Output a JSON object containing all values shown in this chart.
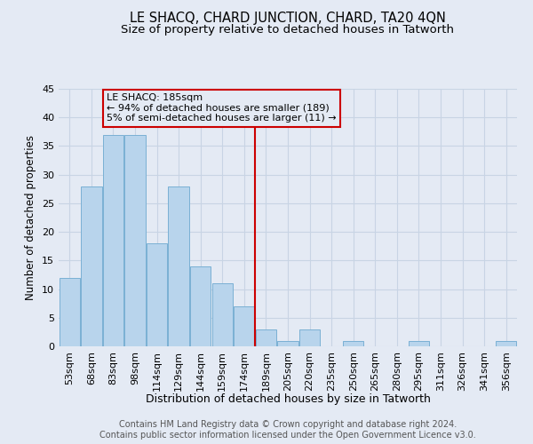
{
  "title": "LE SHACQ, CHARD JUNCTION, CHARD, TA20 4QN",
  "subtitle": "Size of property relative to detached houses in Tatworth",
  "xlabel": "Distribution of detached houses by size in Tatworth",
  "ylabel": "Number of detached properties",
  "footer_line1": "Contains HM Land Registry data © Crown copyright and database right 2024.",
  "footer_line2": "Contains public sector information licensed under the Open Government Licence v3.0.",
  "bin_labels": [
    "53sqm",
    "68sqm",
    "83sqm",
    "98sqm",
    "114sqm",
    "129sqm",
    "144sqm",
    "159sqm",
    "174sqm",
    "189sqm",
    "205sqm",
    "220sqm",
    "235sqm",
    "250sqm",
    "265sqm",
    "280sqm",
    "295sqm",
    "311sqm",
    "326sqm",
    "341sqm",
    "356sqm"
  ],
  "bar_values": [
    12,
    28,
    37,
    37,
    18,
    28,
    14,
    11,
    7,
    3,
    1,
    3,
    0,
    1,
    0,
    0,
    1,
    0,
    0,
    0,
    1
  ],
  "bar_color": "#b8d4ec",
  "bar_edgecolor": "#7ab0d4",
  "grid_color": "#c8d4e4",
  "background_color": "#e4eaf4",
  "vline_x": 8.5,
  "vline_color": "#cc0000",
  "annotation_text": "LE SHACQ: 185sqm\n← 94% of detached houses are smaller (189)\n5% of semi-detached houses are larger (11) →",
  "annotation_box_edgecolor": "#cc0000",
  "ylim": [
    0,
    45
  ],
  "yticks": [
    0,
    5,
    10,
    15,
    20,
    25,
    30,
    35,
    40,
    45
  ],
  "title_fontsize": 10.5,
  "subtitle_fontsize": 9.5,
  "xlabel_fontsize": 9,
  "ylabel_fontsize": 8.5,
  "tick_fontsize": 8,
  "footer_fontsize": 7,
  "annot_fontsize": 8
}
